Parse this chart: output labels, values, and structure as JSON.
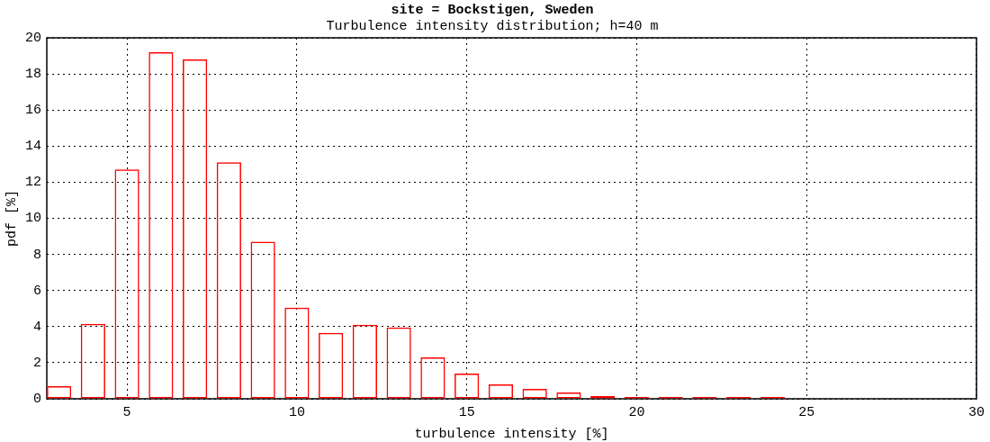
{
  "chart_data": {
    "type": "bar",
    "title": "site = Bockstigen, Sweden",
    "subtitle": "Turbulence intensity distribution; h=40 m",
    "xlabel": "turbulence intensity [%]",
    "ylabel": "pdf [%]",
    "x": [
      3,
      4,
      5,
      6,
      7,
      8,
      9,
      10,
      11,
      12,
      13,
      14,
      15,
      16,
      17,
      18,
      19,
      20,
      21,
      22,
      23,
      24,
      25,
      26,
      27,
      28
    ],
    "values": [
      0.7,
      4.15,
      12.7,
      19.2,
      18.8,
      13.1,
      8.7,
      5.05,
      3.65,
      4.1,
      3.95,
      2.3,
      1.4,
      0.8,
      0.55,
      0.35,
      0.15,
      0.1,
      0.1,
      0.1,
      0.1,
      0.1,
      0,
      0,
      0,
      0
    ],
    "color": "#ff0000",
    "xlim": [
      2.64,
      30
    ],
    "xticks": [
      5,
      10,
      15,
      20,
      25,
      30
    ],
    "ylim": [
      0,
      20
    ],
    "yticks": [
      0,
      2,
      4,
      6,
      8,
      10,
      12,
      14,
      16,
      18,
      20
    ],
    "grid": true
  }
}
